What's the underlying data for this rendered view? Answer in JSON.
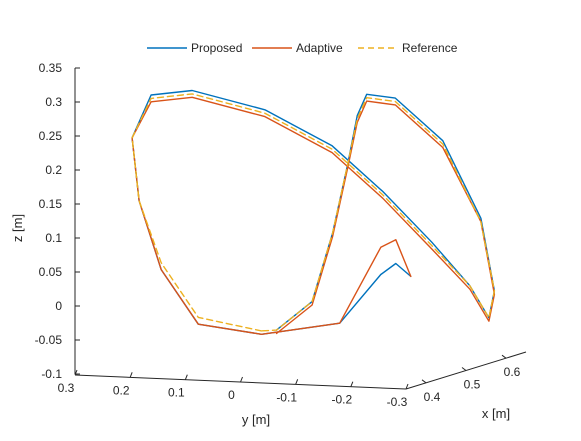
{
  "chart_data": {
    "type": "line",
    "projection": "3d",
    "title": "",
    "xlabel": "x [m]",
    "ylabel": "y [m]",
    "zlabel": "z [m]",
    "xlim": [
      0.35,
      0.65
    ],
    "ylim": [
      -0.3,
      0.3
    ],
    "zlim": [
      -0.1,
      0.35
    ],
    "x_ticks": [
      "0.4",
      "0.5",
      "0.6"
    ],
    "y_ticks": [
      "0.3",
      "0.2",
      "0.1",
      "0",
      "-0.1",
      "-0.2",
      "-0.3"
    ],
    "z_ticks": [
      "0.35",
      "0.3",
      "0.25",
      "0.2",
      "0.15",
      "0.1",
      "0.05",
      "0",
      "-0.05",
      "-0.1"
    ],
    "grid": false,
    "legend_position": "top",
    "legend_orientation": "horizontal",
    "series": [
      {
        "name": "Proposed",
        "color": "#0072BD",
        "dash": "solid",
        "points": [
          [
            0.5,
            -0.2,
            0.035
          ],
          [
            0.49,
            -0.18,
            0.055
          ],
          [
            0.48,
            -0.16,
            0.04
          ],
          [
            0.46,
            -0.1,
            -0.03
          ],
          [
            0.43,
            0.02,
            -0.045
          ],
          [
            0.41,
            0.12,
            -0.03
          ],
          [
            0.4,
            0.18,
            0.05
          ],
          [
            0.4,
            0.22,
            0.15
          ],
          [
            0.41,
            0.24,
            0.24
          ],
          [
            0.43,
            0.22,
            0.3
          ],
          [
            0.45,
            0.16,
            0.305
          ],
          [
            0.48,
            0.05,
            0.275
          ],
          [
            0.51,
            -0.05,
            0.22
          ],
          [
            0.54,
            -0.12,
            0.15
          ],
          [
            0.58,
            -0.18,
            0.07
          ],
          [
            0.62,
            -0.22,
            0.0
          ],
          [
            0.64,
            -0.24,
            -0.05
          ],
          [
            0.64,
            -0.25,
            -0.01
          ],
          [
            0.62,
            -0.24,
            0.1
          ],
          [
            0.58,
            -0.2,
            0.22
          ],
          [
            0.53,
            -0.15,
            0.29
          ],
          [
            0.5,
            -0.12,
            0.3
          ],
          [
            0.49,
            -0.11,
            0.27
          ],
          [
            0.48,
            -0.1,
            0.2
          ],
          [
            0.47,
            -0.08,
            0.1
          ],
          [
            0.46,
            -0.05,
            0.0
          ],
          [
            0.44,
            0.0,
            -0.04
          ]
        ]
      },
      {
        "name": "Adaptive",
        "color": "#D95319",
        "dash": "solid",
        "points": [
          [
            0.5,
            -0.2,
            0.035
          ],
          [
            0.49,
            -0.18,
            0.09
          ],
          [
            0.48,
            -0.16,
            0.08
          ],
          [
            0.46,
            -0.1,
            -0.03
          ],
          [
            0.43,
            0.02,
            -0.045
          ],
          [
            0.41,
            0.12,
            -0.03
          ],
          [
            0.4,
            0.18,
            0.05
          ],
          [
            0.4,
            0.22,
            0.15
          ],
          [
            0.41,
            0.24,
            0.24
          ],
          [
            0.43,
            0.22,
            0.29
          ],
          [
            0.45,
            0.16,
            0.295
          ],
          [
            0.48,
            0.05,
            0.265
          ],
          [
            0.51,
            -0.05,
            0.21
          ],
          [
            0.54,
            -0.12,
            0.14
          ],
          [
            0.58,
            -0.18,
            0.06
          ],
          [
            0.62,
            -0.22,
            -0.005
          ],
          [
            0.64,
            -0.24,
            -0.055
          ],
          [
            0.64,
            -0.25,
            -0.015
          ],
          [
            0.62,
            -0.24,
            0.095
          ],
          [
            0.58,
            -0.2,
            0.21
          ],
          [
            0.53,
            -0.15,
            0.28
          ],
          [
            0.5,
            -0.12,
            0.29
          ],
          [
            0.49,
            -0.11,
            0.26
          ],
          [
            0.48,
            -0.1,
            0.195
          ],
          [
            0.47,
            -0.08,
            0.095
          ],
          [
            0.46,
            -0.05,
            -0.005
          ],
          [
            0.44,
            0.0,
            -0.045
          ]
        ]
      },
      {
        "name": "Reference",
        "color": "#EDB120",
        "dash": "dashed",
        "points": [
          [
            0.43,
            0.02,
            -0.04
          ],
          [
            0.41,
            0.12,
            -0.02
          ],
          [
            0.4,
            0.18,
            0.06
          ],
          [
            0.4,
            0.22,
            0.15
          ],
          [
            0.41,
            0.24,
            0.24
          ],
          [
            0.43,
            0.22,
            0.295
          ],
          [
            0.45,
            0.16,
            0.3
          ],
          [
            0.48,
            0.05,
            0.27
          ],
          [
            0.51,
            -0.05,
            0.215
          ],
          [
            0.54,
            -0.12,
            0.145
          ],
          [
            0.58,
            -0.18,
            0.065
          ],
          [
            0.62,
            -0.22,
            0.0
          ],
          [
            0.64,
            -0.24,
            -0.05
          ],
          [
            0.64,
            -0.25,
            -0.01
          ],
          [
            0.62,
            -0.24,
            0.095
          ],
          [
            0.58,
            -0.2,
            0.215
          ],
          [
            0.53,
            -0.15,
            0.285
          ],
          [
            0.5,
            -0.12,
            0.295
          ],
          [
            0.49,
            -0.11,
            0.265
          ],
          [
            0.48,
            -0.1,
            0.2
          ],
          [
            0.47,
            -0.08,
            0.1
          ],
          [
            0.46,
            -0.05,
            0.0
          ],
          [
            0.44,
            0.0,
            -0.04
          ],
          [
            0.43,
            0.02,
            -0.04
          ]
        ]
      }
    ]
  }
}
